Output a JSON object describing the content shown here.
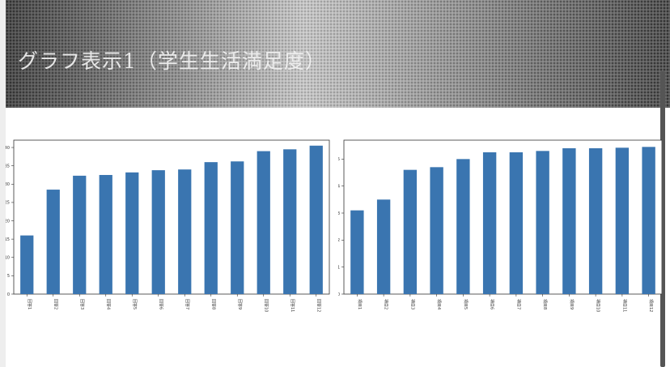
{
  "page": {
    "title": "グラフ表示1（学生生活満足度）"
  },
  "chart_data": [
    {
      "type": "bar",
      "categories": [
        "回答1",
        "回答2",
        "回答3",
        "回答4",
        "回答5",
        "回答6",
        "回答7",
        "回答8",
        "回答9",
        "回答10",
        "回答11",
        "回答12"
      ],
      "values": [
        16,
        28.5,
        32.3,
        32.5,
        33.2,
        33.8,
        34,
        36,
        36.2,
        39,
        39.5,
        40.5
      ],
      "ylim": [
        0,
        42
      ],
      "yticks": [
        0,
        5,
        10,
        15,
        20,
        25,
        30,
        35,
        40
      ],
      "xlabel": "",
      "color": "#3a75b0",
      "grid": false
    },
    {
      "type": "bar",
      "categories": [
        "項目1",
        "項目2",
        "項目3",
        "項目4",
        "項目5",
        "項目6",
        "項目7",
        "項目8",
        "項目9",
        "項目10",
        "項目11",
        "項目12"
      ],
      "values": [
        3.1,
        3.5,
        4.6,
        4.7,
        5.0,
        5.25,
        5.25,
        5.3,
        5.4,
        5.4,
        5.42,
        5.45
      ],
      "ylim": [
        0,
        5.7
      ],
      "yticks": [
        0,
        1,
        2,
        3,
        4,
        5
      ],
      "xlabel": "",
      "color": "#3a75b0",
      "grid": false
    }
  ]
}
